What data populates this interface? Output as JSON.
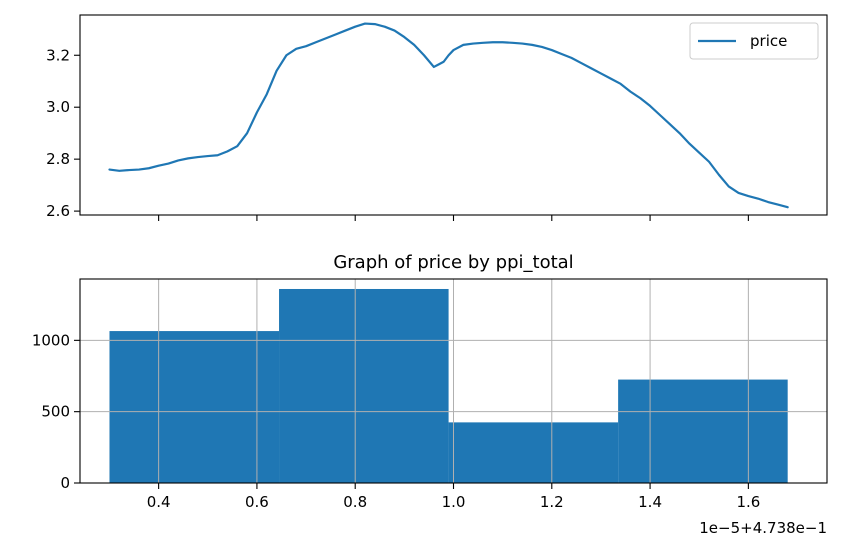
{
  "chart_data": [
    {
      "type": "line",
      "title": "",
      "xlabel": "",
      "ylabel": "",
      "x": [
        0.3,
        0.32,
        0.34,
        0.36,
        0.38,
        0.4,
        0.42,
        0.44,
        0.46,
        0.48,
        0.5,
        0.52,
        0.54,
        0.56,
        0.58,
        0.6,
        0.62,
        0.64,
        0.66,
        0.68,
        0.7,
        0.72,
        0.74,
        0.76,
        0.78,
        0.8,
        0.82,
        0.84,
        0.86,
        0.88,
        0.9,
        0.92,
        0.94,
        0.96,
        0.97,
        0.98,
        0.99,
        1.0,
        1.02,
        1.04,
        1.06,
        1.08,
        1.1,
        1.12,
        1.14,
        1.16,
        1.18,
        1.2,
        1.22,
        1.24,
        1.26,
        1.28,
        1.3,
        1.32,
        1.34,
        1.36,
        1.38,
        1.4,
        1.42,
        1.44,
        1.46,
        1.48,
        1.5,
        1.52,
        1.54,
        1.56,
        1.58,
        1.6,
        1.62,
        1.64,
        1.66,
        1.68
      ],
      "series": [
        {
          "name": "price",
          "color": "#1f77b4",
          "values": [
            2.76,
            2.755,
            2.758,
            2.76,
            2.765,
            2.775,
            2.783,
            2.795,
            2.803,
            2.808,
            2.812,
            2.815,
            2.83,
            2.85,
            2.9,
            2.98,
            3.05,
            3.14,
            3.2,
            3.225,
            3.235,
            3.25,
            3.265,
            3.28,
            3.295,
            3.31,
            3.322,
            3.32,
            3.31,
            3.295,
            3.27,
            3.24,
            3.2,
            3.155,
            3.165,
            3.175,
            3.2,
            3.22,
            3.24,
            3.245,
            3.248,
            3.25,
            3.25,
            3.248,
            3.245,
            3.24,
            3.232,
            3.22,
            3.205,
            3.19,
            3.17,
            3.15,
            3.13,
            3.11,
            3.09,
            3.06,
            3.035,
            3.005,
            2.97,
            2.935,
            2.9,
            2.86,
            2.825,
            2.79,
            2.74,
            2.695,
            2.67,
            2.658,
            2.648,
            2.635,
            2.625,
            2.615
          ]
        }
      ],
      "xlim": [
        0.24,
        1.76
      ],
      "ylim": [
        2.585,
        3.355
      ],
      "yticks": [
        2.6,
        2.8,
        3.0,
        3.2
      ],
      "yticklabels": [
        "2.6",
        "2.8",
        "3.0",
        "3.2"
      ],
      "xticks": [
        0.4,
        0.6,
        0.8,
        1.0,
        1.2,
        1.4,
        1.6
      ],
      "xticklabels_visible": false,
      "grid": false,
      "legend": {
        "position": "upper-right",
        "entries": [
          "price"
        ]
      }
    },
    {
      "type": "bar",
      "title": "Graph of price by ppi_total",
      "xlabel": "",
      "ylabel": "",
      "bins": [
        {
          "start": 0.3,
          "end": 0.645,
          "count": 1065
        },
        {
          "start": 0.645,
          "end": 0.99,
          "count": 1360
        },
        {
          "start": 0.99,
          "end": 1.335,
          "count": 425
        },
        {
          "start": 1.335,
          "end": 1.68,
          "count": 725
        }
      ],
      "color": "#1f77b4",
      "xlim": [
        0.24,
        1.76
      ],
      "ylim": [
        0,
        1430
      ],
      "xticks": [
        0.4,
        0.6,
        0.8,
        1.0,
        1.2,
        1.4,
        1.6
      ],
      "xticklabels": [
        "0.4",
        "0.6",
        "0.8",
        "1.0",
        "1.2",
        "1.4",
        "1.6"
      ],
      "yticks": [
        0,
        500,
        1000
      ],
      "yticklabels": [
        "0",
        "500",
        "1000"
      ],
      "grid": true,
      "x_offset_label": "1e−5+4.738e−1"
    }
  ]
}
